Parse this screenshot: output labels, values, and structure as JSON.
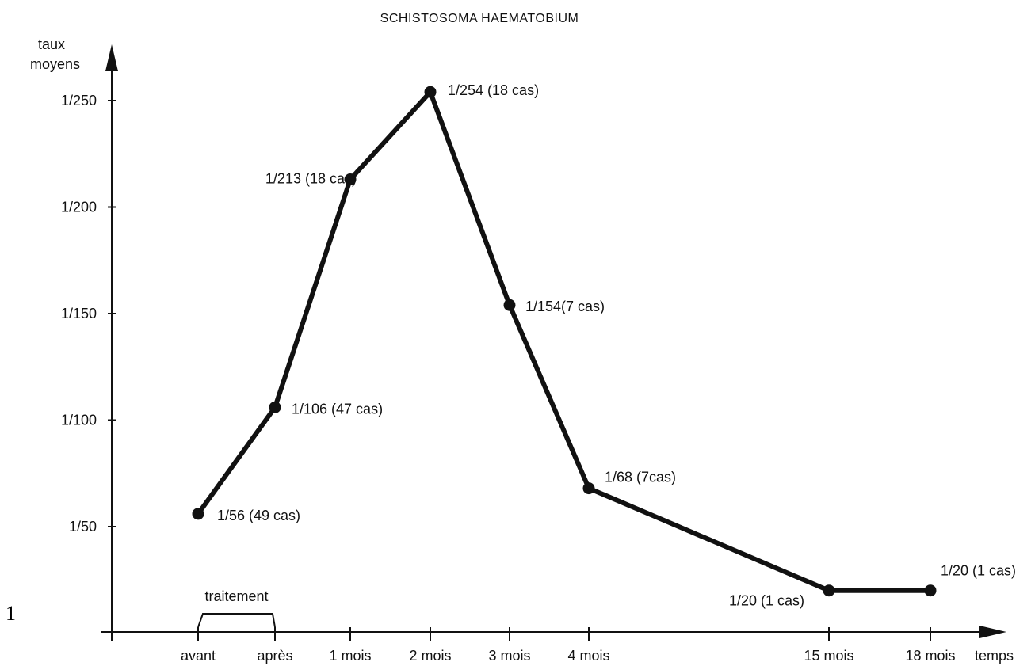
{
  "chart_data": {
    "type": "line",
    "title": "SCHISTOSOMA HAEMATOBIUM",
    "ylabel_lines": [
      "taux",
      "moyens"
    ],
    "xlabel": "temps",
    "y_scale": "reciprocal",
    "y_ticks": [
      {
        "value": 50,
        "label": "1/50"
      },
      {
        "value": 100,
        "label": "1/100"
      },
      {
        "value": 150,
        "label": "1/150"
      },
      {
        "value": 200,
        "label": "1/200"
      },
      {
        "value": 250,
        "label": "1/250"
      }
    ],
    "ylim": [
      0,
      250
    ],
    "x_ticks": [
      {
        "value": 0,
        "label": "avant"
      },
      {
        "value": 1,
        "label": "après"
      },
      {
        "value": 2,
        "label": "1 mois"
      },
      {
        "value": 3,
        "label": "2 mois"
      },
      {
        "value": 4,
        "label": "3 mois"
      },
      {
        "value": 5,
        "label": "4 mois"
      },
      {
        "value": 6,
        "label": "15 mois"
      },
      {
        "value": 7,
        "label": "18 mois"
      }
    ],
    "points": [
      {
        "x": 0,
        "y": 56,
        "label": "1/56 (49 cas)"
      },
      {
        "x": 1,
        "y": 106,
        "label": "1/106 (47 cas)"
      },
      {
        "x": 2,
        "y": 213,
        "label": "1/213 (18 cas)"
      },
      {
        "x": 3,
        "y": 254,
        "label": "1/254 (18 cas)"
      },
      {
        "x": 4,
        "y": 154,
        "label": "1/154(7 cas)"
      },
      {
        "x": 5,
        "y": 68,
        "label": "1/68 (7cas)"
      },
      {
        "x": 6,
        "y": 20,
        "label": "1/20 (1 cas)"
      },
      {
        "x": 7,
        "y": 20,
        "label": "1/20 (1 cas)"
      }
    ],
    "treatment_bracket": {
      "from": 0,
      "to": 1,
      "label": "traitement"
    },
    "corner_mark": "1",
    "grid": false,
    "legend": "none"
  }
}
